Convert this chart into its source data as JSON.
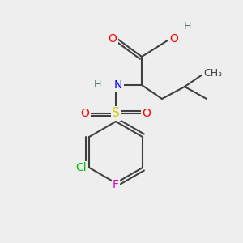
{
  "background_color": "#eeeeee",
  "bond_color": "#404040",
  "bond_width": 1.5,
  "atom_colors": {
    "O": "#ff0000",
    "N": "#0000ff",
    "S": "#cccc00",
    "Cl": "#00bb00",
    "F": "#cc00cc",
    "H": "#507070",
    "C": "#404040"
  },
  "font_size": 10,
  "font_size_small": 9
}
